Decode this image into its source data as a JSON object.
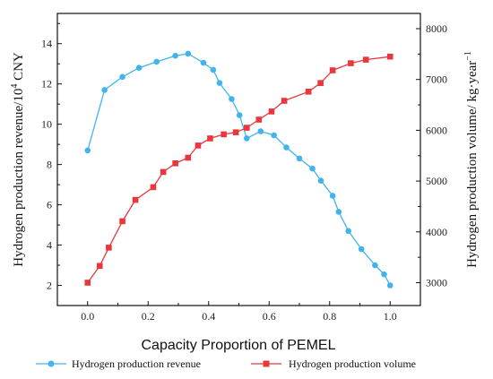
{
  "chart_data": {
    "type": "line",
    "xlabel": "Capacity Proportion of PEMEL",
    "ylabel_left": "Hydrogen production revenue/10",
    "ylabel_left_sup": "4",
    "ylabel_left_unit": " CNY",
    "ylabel_right": "Hydrogen production volume/ kg·year",
    "ylabel_right_sup": "−1",
    "xlim": [
      -0.1,
      1.1
    ],
    "ylim_left": [
      1,
      15.5
    ],
    "ylim_right": [
      2550,
      8300
    ],
    "x_ticks": [
      0.0,
      0.2,
      0.4,
      0.6,
      0.8,
      1.0
    ],
    "x_tick_labels": [
      "0.0",
      "0.2",
      "0.4",
      "0.6",
      "0.8",
      "1.0"
    ],
    "y_left_ticks": [
      2,
      4,
      6,
      8,
      10,
      12,
      14
    ],
    "y_left_tick_labels": [
      "2",
      "4",
      "6",
      "8",
      "10",
      "12",
      "14"
    ],
    "y_right_ticks": [
      3000,
      4000,
      5000,
      6000,
      7000,
      8000
    ],
    "y_right_tick_labels": [
      "3000",
      "4000",
      "5000",
      "6000",
      "7000",
      "8000"
    ],
    "legend_position": "bottom",
    "series": [
      {
        "name": "Hydrogen production revenue",
        "axis": "left",
        "color": "#42b4ec",
        "marker": "circle",
        "x": [
          0.0,
          0.056,
          0.115,
          0.17,
          0.228,
          0.29,
          0.332,
          0.383,
          0.415,
          0.436,
          0.476,
          0.502,
          0.526,
          0.572,
          0.616,
          0.657,
          0.7,
          0.743,
          0.771,
          0.81,
          0.83,
          0.862,
          0.905,
          0.95,
          0.98,
          1.0
        ],
        "values": [
          8.7,
          11.7,
          12.35,
          12.8,
          13.1,
          13.4,
          13.5,
          13.05,
          12.7,
          12.05,
          11.25,
          10.45,
          9.3,
          9.65,
          9.45,
          8.85,
          8.3,
          7.8,
          7.2,
          6.45,
          5.65,
          4.7,
          3.8,
          3.0,
          2.55,
          2.0
        ]
      },
      {
        "name": "Hydrogen production volume",
        "axis": "right",
        "color": "#e8383d",
        "marker": "square",
        "x": [
          0.0,
          0.04,
          0.07,
          0.115,
          0.158,
          0.217,
          0.25,
          0.29,
          0.332,
          0.365,
          0.405,
          0.45,
          0.49,
          0.526,
          0.566,
          0.608,
          0.65,
          0.73,
          0.77,
          0.81,
          0.87,
          0.92,
          1.0
        ],
        "values": [
          3000,
          3330,
          3690,
          4210,
          4630,
          4880,
          5180,
          5350,
          5460,
          5700,
          5840,
          5920,
          5960,
          6050,
          6210,
          6370,
          6580,
          6760,
          6930,
          7180,
          7320,
          7390,
          7450
        ]
      }
    ]
  }
}
